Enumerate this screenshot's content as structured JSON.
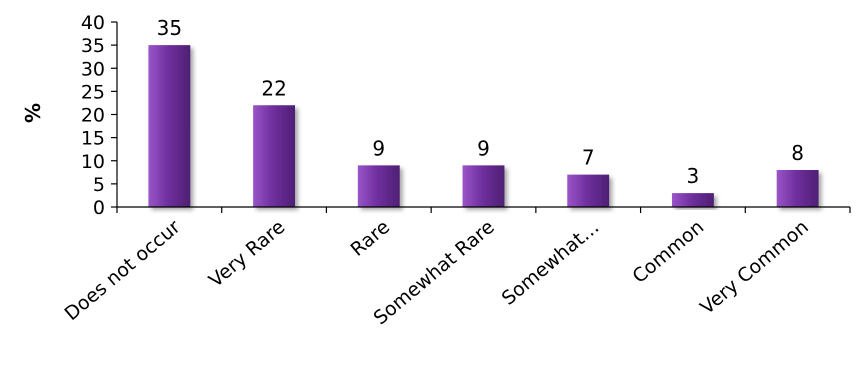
{
  "chart_data": {
    "type": "bar",
    "title": "",
    "xlabel": "",
    "ylabel": "%",
    "ylim": [
      0,
      40
    ],
    "yticks": [
      0,
      5,
      10,
      15,
      20,
      25,
      30,
      35,
      40
    ],
    "grid": false,
    "legend": "none",
    "categories": [
      "Does not occur",
      "Very Rare",
      "Rare",
      "Somewhat Rare",
      "Somewhat…",
      "Common",
      "Very Common"
    ],
    "values": [
      35,
      22,
      9,
      9,
      7,
      3,
      8
    ],
    "data_labels": [
      "35",
      "22",
      "9",
      "9",
      "7",
      "3",
      "8"
    ],
    "colors": {
      "bar_main": "#7030a0",
      "bar_light": "#9a55c8",
      "bar_dark": "#4e1f73"
    }
  }
}
